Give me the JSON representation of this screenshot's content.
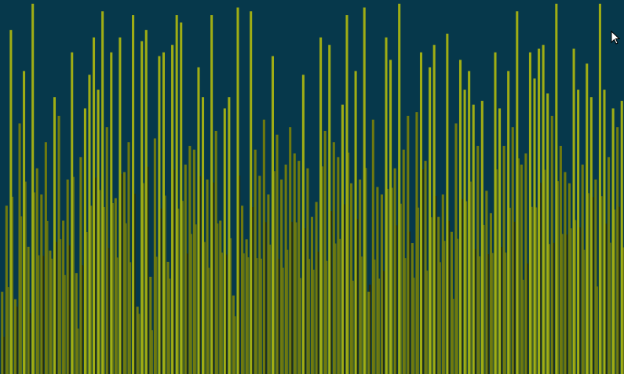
{
  "visualizer": {
    "background_color": "#06384b",
    "bar_color_top": "#9fad14",
    "bar_color_mid": "#6f7a0e",
    "bar_color_dark": "#2a2c08",
    "level_max": 1,
    "bars": [
      0.22,
      0.45,
      0.92,
      0.2,
      0.67,
      0.81,
      0.34,
      0.99,
      0.55,
      0.48,
      0.62,
      0.33,
      0.74,
      0.69,
      0.41,
      0.52,
      0.86,
      0.27,
      0.58,
      0.71,
      0.8,
      0.9,
      0.76,
      0.97,
      0.66,
      0.86,
      0.47,
      0.9,
      0.54,
      0.62,
      0.96,
      0.18,
      0.89,
      0.92,
      0.26,
      0.63,
      0.85,
      0.86,
      0.3,
      0.88,
      0.96,
      0.94,
      0.56,
      0.61,
      0.6,
      0.82,
      0.74,
      0.52,
      0.96,
      0.65,
      0.41,
      0.71,
      0.74,
      0.21,
      0.98,
      0.45,
      0.36,
      0.97,
      0.6,
      0.53,
      0.68,
      0.48,
      0.85,
      0.64,
      0.52,
      0.56,
      0.66,
      0.59,
      0.57,
      0.8,
      0.55,
      0.42,
      0.46,
      0.9,
      0.65,
      0.88,
      0.62,
      0.58,
      0.72,
      0.96,
      0.51,
      0.81,
      0.52,
      0.98,
      0.22,
      0.68,
      0.5,
      0.48,
      0.9,
      0.84,
      0.55,
      0.99,
      0.6,
      0.69,
      0.35,
      0.7,
      0.86,
      0.57,
      0.82,
      0.88,
      0.42,
      0.48,
      0.91,
      0.38,
      0.67,
      0.84,
      0.76,
      0.81,
      0.72,
      0.61,
      0.73,
      0.49,
      0.43,
      0.86,
      0.71,
      0.61,
      0.81,
      0.66,
      0.97,
      0.56,
      0.59,
      0.86,
      0.79,
      0.87,
      0.88,
      0.75,
      0.69,
      0.99,
      0.61,
      0.54,
      0.51,
      0.87,
      0.76,
      0.56,
      0.83,
      0.74,
      0.52,
      0.99,
      0.76,
      0.58,
      0.71,
      0.66,
      0.73
    ]
  }
}
